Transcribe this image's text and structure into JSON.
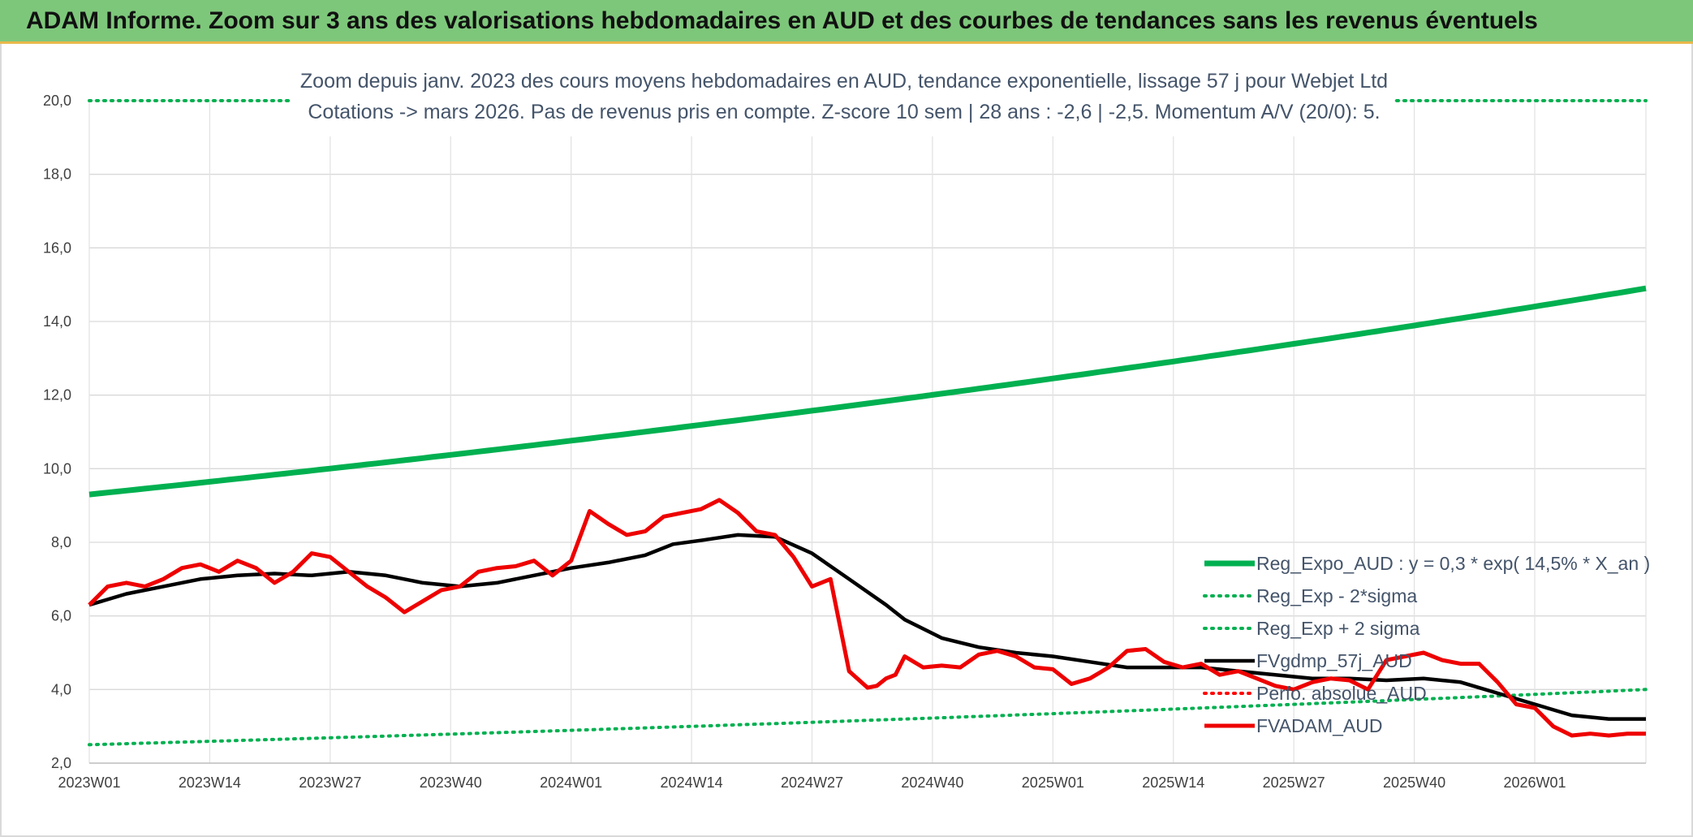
{
  "header": {
    "title": "ADAM Informe. Zoom sur 3 ans des valorisations hebdomadaires en AUD et des courbes de tendances sans les revenus éventuels"
  },
  "chart_data": {
    "type": "line",
    "subtitle_lines": [
      "Zoom depuis janv. 2023 des cours moyens hebdomadaires en AUD, tendance exponentielle, lissage 57 j pour Webjet Ltd",
      "Cotations -> mars 2026. Pas de revenus pris en compte. Z-score 10 sem | 28 ans : -2,6 | -2,5. Momentum A/V (20/0): 5."
    ],
    "ylim": [
      2,
      20
    ],
    "y_ticks": [
      "2,0",
      "4,0",
      "6,0",
      "8,0",
      "10,0",
      "12,0",
      "14,0",
      "16,0",
      "18,0",
      "20,0"
    ],
    "x_ticks": [
      "2023W01",
      "2023W14",
      "2023W27",
      "2023W40",
      "2024W01",
      "2024W14",
      "2024W27",
      "2024W40",
      "2025W01",
      "2025W14",
      "2025W27",
      "2025W40",
      "2026W01"
    ],
    "grid": true,
    "legend_position": "bottom-right",
    "series": [
      {
        "name": "Reg_Expo_AUD : y = 0,3 * exp( 14,5% * X_an )",
        "color": "#00b050",
        "style": "solid",
        "x": [
          0,
          168
        ],
        "values": [
          9.3,
          14.9
        ],
        "curve": "exponential"
      },
      {
        "name": "Reg_Exp - 2*sigma",
        "color": "#00b050",
        "style": "dotted",
        "x": [
          0,
          168
        ],
        "values": [
          2.5,
          4.0
        ],
        "curve": "exponential"
      },
      {
        "name": "Reg_Exp + 2 sigma",
        "color": "#00b050",
        "style": "dotted",
        "x": [
          0,
          168
        ],
        "values": [
          20.0,
          20.0
        ],
        "curve": "linear"
      },
      {
        "name": "FVgdmp_57j_AUD",
        "color": "#000000",
        "style": "solid",
        "x": [
          0,
          4,
          8,
          12,
          16,
          20,
          24,
          28,
          32,
          36,
          40,
          44,
          48,
          52,
          56,
          60,
          63,
          66,
          70,
          74,
          78,
          82,
          86,
          88,
          92,
          96,
          100,
          104,
          108,
          112,
          116,
          120,
          124,
          128,
          132,
          136,
          140,
          144,
          148,
          152,
          156,
          160,
          164,
          168
        ],
        "values": [
          6.3,
          6.6,
          6.8,
          7.0,
          7.1,
          7.15,
          7.1,
          7.2,
          7.1,
          6.9,
          6.8,
          6.9,
          7.1,
          7.3,
          7.45,
          7.65,
          7.95,
          8.05,
          8.2,
          8.15,
          7.7,
          7.0,
          6.3,
          5.9,
          5.4,
          5.15,
          5.0,
          4.9,
          4.75,
          4.6,
          4.6,
          4.6,
          4.5,
          4.4,
          4.3,
          4.3,
          4.25,
          4.3,
          4.2,
          3.9,
          3.6,
          3.3,
          3.2,
          3.2
        ]
      },
      {
        "name": "Perfo. absolue_AUD",
        "color": "#ff0000",
        "style": "dotted",
        "x": [],
        "values": []
      },
      {
        "name": "FVADAM_AUD",
        "color": "#ee0000",
        "style": "solid",
        "x": [
          0,
          2,
          4,
          6,
          8,
          10,
          12,
          14,
          16,
          18,
          20,
          22,
          24,
          26,
          28,
          30,
          32,
          34,
          36,
          38,
          40,
          42,
          44,
          46,
          48,
          50,
          52,
          54,
          56,
          58,
          60,
          62,
          64,
          66,
          68,
          70,
          72,
          74,
          76,
          78,
          80,
          82,
          84,
          85,
          86,
          87,
          88,
          90,
          92,
          94,
          96,
          98,
          100,
          102,
          104,
          106,
          108,
          110,
          112,
          114,
          116,
          118,
          120,
          122,
          124,
          126,
          128,
          130,
          132,
          134,
          136,
          138,
          140,
          142,
          144,
          146,
          148,
          150,
          152,
          154,
          156,
          158,
          160,
          162,
          164,
          166,
          168
        ],
        "values": [
          6.3,
          6.8,
          6.9,
          6.8,
          7.0,
          7.3,
          7.4,
          7.2,
          7.5,
          7.3,
          6.9,
          7.2,
          7.7,
          7.6,
          7.2,
          6.8,
          6.5,
          6.1,
          6.4,
          6.7,
          6.8,
          7.2,
          7.3,
          7.35,
          7.5,
          7.1,
          7.5,
          8.85,
          8.5,
          8.2,
          8.3,
          8.7,
          8.8,
          8.9,
          9.15,
          8.8,
          8.3,
          8.2,
          7.6,
          6.8,
          7.0,
          4.5,
          4.05,
          4.1,
          4.3,
          4.4,
          4.9,
          4.6,
          4.65,
          4.6,
          4.95,
          5.05,
          4.9,
          4.6,
          4.55,
          4.15,
          4.3,
          4.6,
          5.05,
          5.1,
          4.75,
          4.6,
          4.7,
          4.4,
          4.5,
          4.3,
          4.1,
          4.0,
          4.2,
          4.3,
          4.25,
          4.0,
          4.8,
          4.9,
          5.0,
          4.8,
          4.7,
          4.7,
          4.2,
          3.6,
          3.5,
          3.0,
          2.75,
          2.8,
          2.75,
          2.8,
          2.8
        ]
      }
    ]
  }
}
